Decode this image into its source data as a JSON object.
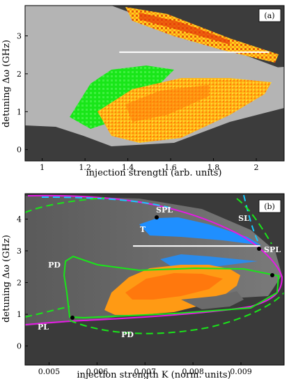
{
  "chart_data": [
    {
      "type": "heatmap",
      "panel_label": "(a)",
      "xlabel": "injection strength (arb. units)",
      "ylabel": "detuning Δω (GHz)",
      "xlim": [
        0.92,
        2.13
      ],
      "ylim": [
        -0.3,
        3.8
      ],
      "xticks": [
        "1",
        "1.2",
        "1.4",
        "1.6",
        "1.8",
        "2"
      ],
      "yticks": [
        "0",
        "1",
        "2",
        "3"
      ],
      "colors": {
        "background": "#3c3c3c",
        "locked": "#b4b4b4",
        "period_doubling": "#19e619",
        "chaos_low": "#ffd21e",
        "chaos_high": "#e63c0a"
      },
      "marker_line": {
        "x": [
          1.36,
          2.06
        ],
        "y": 2.57
      }
    },
    {
      "type": "heatmap",
      "panel_label": "(b)",
      "xlabel": "injection strength K (norm. units)",
      "ylabel": "detuning Δω (GHz)",
      "xlim": [
        0.0045,
        0.0099
      ],
      "ylim": [
        -0.6,
        4.8
      ],
      "xticks": [
        "0.005",
        "0.006",
        "0.007",
        "0.008",
        "0.009"
      ],
      "yticks": [
        "0",
        "1",
        "2",
        "3",
        "4"
      ],
      "curve_labels": [
        "SPL",
        "SPL",
        "SL",
        "T",
        "PD",
        "PD",
        "PL"
      ],
      "colors": {
        "saddle_node": "#e619e6",
        "period_doubling": "#19e619",
        "torus": "#1f8fff",
        "sl_dashed": "#19c8ff",
        "chaos": "#ff8c0a"
      },
      "marker_line": {
        "x": [
          0.00675,
          0.0094
        ],
        "y": 3.15
      }
    }
  ]
}
